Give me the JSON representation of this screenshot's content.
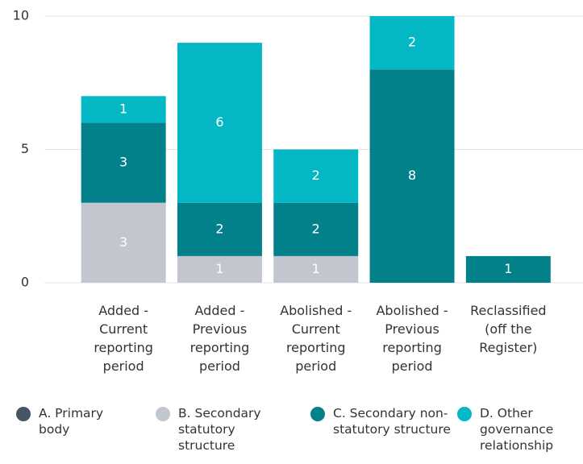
{
  "chart_data": {
    "type": "stacked_bar",
    "categories": [
      "Added - Current reporting period",
      "Added - Previous reporting period",
      "Abolished - Current reporting period",
      "Abolished - Previous reporting period",
      "Reclassified (off the Register)"
    ],
    "series": [
      {
        "name": "A. Primary body",
        "color": "#465566",
        "values": [
          0,
          0,
          0,
          0,
          0
        ]
      },
      {
        "name": "B. Secondary statutory structure",
        "color": "#c1c6cf",
        "values": [
          3,
          1,
          1,
          0,
          0
        ]
      },
      {
        "name": "C. Secondary non-statutory structure",
        "color": "#03818a",
        "values": [
          3,
          2,
          2,
          8,
          1
        ]
      },
      {
        "name": "D. Other governance relationship",
        "color": "#03b8c4",
        "values": [
          1,
          6,
          2,
          2,
          0
        ]
      }
    ],
    "ylim": [
      0,
      10
    ],
    "yticks": [
      0,
      5,
      10
    ],
    "grid": true
  }
}
